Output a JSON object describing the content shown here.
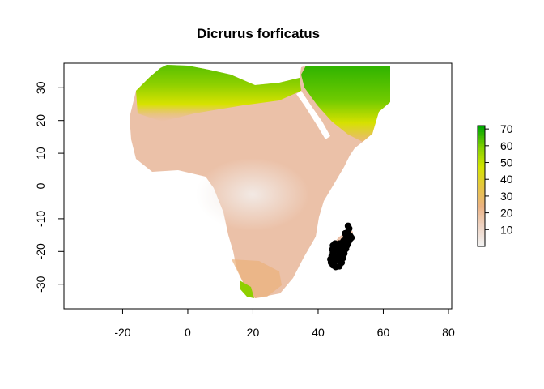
{
  "title": "Dicrurus forficatus",
  "chart_data": {
    "type": "heatmap",
    "title": "Dicrurus forficatus",
    "xlabel": "",
    "ylabel": "",
    "xlim": [
      -38,
      81
    ],
    "ylim": [
      -37.5,
      37.5
    ],
    "x_ticks": [
      -20,
      0,
      20,
      40,
      60,
      80
    ],
    "y_ticks": [
      -30,
      -20,
      -10,
      0,
      10,
      20,
      30
    ],
    "x_tick_labels": [
      "-20",
      "0",
      "20",
      "40",
      "60",
      "80"
    ],
    "y_tick_labels": [
      "-30",
      "-20",
      "-10",
      "0",
      "10",
      "20",
      "30"
    ],
    "legend": {
      "range": [
        0,
        72
      ],
      "ticks": [
        10,
        20,
        30,
        40,
        50,
        60,
        70
      ],
      "tick_labels": [
        "10",
        "20",
        "30",
        "40",
        "50",
        "60",
        "70"
      ],
      "colors": [
        "#f2f2f2",
        "#eed3c3",
        "#ebb282",
        "#e6c640",
        "#d2e400",
        "#80d000",
        "#00a600"
      ],
      "placement": "right"
    },
    "occurrence_points": {
      "color": "#000000",
      "points": [
        [
          49.2,
          -12.2
        ],
        [
          49.5,
          -13.0
        ],
        [
          49.0,
          -14.2
        ],
        [
          48.6,
          -15.0
        ],
        [
          48.3,
          -14.5
        ],
        [
          49.8,
          -15.2
        ],
        [
          50.2,
          -15.8
        ],
        [
          49.6,
          -16.6
        ],
        [
          49.2,
          -17.4
        ],
        [
          48.6,
          -16.2
        ],
        [
          47.8,
          -16.8
        ],
        [
          47.3,
          -17.4
        ],
        [
          46.5,
          -17.6
        ],
        [
          45.2,
          -17.6
        ],
        [
          44.6,
          -18.2
        ],
        [
          44.4,
          -19.4
        ],
        [
          44.6,
          -20.4
        ],
        [
          44.2,
          -21.4
        ],
        [
          43.8,
          -22.4
        ],
        [
          44.0,
          -23.4
        ],
        [
          44.6,
          -24.2
        ],
        [
          45.4,
          -24.7
        ],
        [
          46.5,
          -24.5
        ],
        [
          47.2,
          -23.4
        ],
        [
          47.6,
          -22.0
        ],
        [
          48.0,
          -20.6
        ],
        [
          48.5,
          -19.2
        ],
        [
          46.2,
          -19.8
        ],
        [
          45.8,
          -21.6
        ],
        [
          46.8,
          -22.6
        ],
        [
          47.5,
          -18.8
        ],
        [
          45.0,
          -23.0
        ],
        [
          46.0,
          -18.7
        ],
        [
          47.0,
          -20.5
        ],
        [
          48.8,
          -18.2
        ]
      ]
    }
  }
}
